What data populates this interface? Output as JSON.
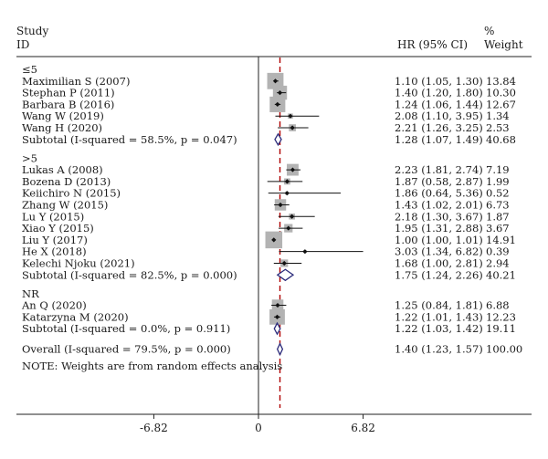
{
  "chart_data": {
    "type": "forest",
    "header": {
      "study_line1": "Study",
      "study_line2": "ID",
      "hr": "HR (95% CI)",
      "weight_line1": "%",
      "weight_line2": "Weight"
    },
    "axis": {
      "ticks": [
        {
          "value": -6.82,
          "label": "-6.82"
        },
        {
          "value": 0,
          "label": "0"
        },
        {
          "value": 6.82,
          "label": "6.82"
        }
      ],
      "null_value": 0,
      "xlim": [
        -6.82,
        6.82
      ],
      "note": "NOTE: Weights are from random effects analysis"
    },
    "groups": [
      {
        "label": "≤5",
        "studies": [
          {
            "name": "Maximilian S (2007)",
            "hr": 1.1,
            "lo": 1.05,
            "hi": 1.3,
            "ci": "1.10 (1.05, 1.30)",
            "weight": "13.84"
          },
          {
            "name": "Stephan P (2011)",
            "hr": 1.4,
            "lo": 1.2,
            "hi": 1.8,
            "ci": "1.40 (1.20, 1.80)",
            "weight": "10.30"
          },
          {
            "name": "Barbara B (2016)",
            "hr": 1.24,
            "lo": 1.06,
            "hi": 1.44,
            "ci": "1.24 (1.06, 1.44)",
            "weight": "12.67"
          },
          {
            "name": "Wang W (2019)",
            "hr": 2.08,
            "lo": 1.1,
            "hi": 3.95,
            "ci": "2.08 (1.10, 3.95)",
            "weight": "1.34"
          },
          {
            "name": "Wang H (2020)",
            "hr": 2.21,
            "lo": 1.26,
            "hi": 3.25,
            "ci": "2.21 (1.26, 3.25)",
            "weight": "2.53"
          }
        ],
        "subtotal": {
          "name": "Subtotal (I-squared = 58.5%, p = 0.047)",
          "hr": 1.28,
          "lo": 1.07,
          "hi": 1.49,
          "ci": "1.28 (1.07, 1.49)",
          "weight": "40.68"
        }
      },
      {
        "label": ">5",
        "studies": [
          {
            "name": "Lukas A (2008)",
            "hr": 2.23,
            "lo": 1.81,
            "hi": 2.74,
            "ci": "2.23 (1.81, 2.74)",
            "weight": "7.19"
          },
          {
            "name": "Bozena D (2013)",
            "hr": 1.87,
            "lo": 0.58,
            "hi": 2.87,
            "ci": "1.87 (0.58, 2.87)",
            "weight": "1.99"
          },
          {
            "name": "Keiichiro N (2015)",
            "hr": 1.86,
            "lo": 0.64,
            "hi": 5.36,
            "ci": "1.86 (0.64, 5.36)",
            "weight": "0.52"
          },
          {
            "name": "Zhang W (2015)",
            "hr": 1.43,
            "lo": 1.02,
            "hi": 2.01,
            "ci": "1.43 (1.02, 2.01)",
            "weight": "6.73"
          },
          {
            "name": "Lu Y (2015)",
            "hr": 2.18,
            "lo": 1.3,
            "hi": 3.67,
            "ci": "2.18 (1.30, 3.67)",
            "weight": "1.87"
          },
          {
            "name": "Xiao Y (2015)",
            "hr": 1.95,
            "lo": 1.31,
            "hi": 2.88,
            "ci": "1.95 (1.31, 2.88)",
            "weight": "3.67"
          },
          {
            "name": "Liu Y (2017)",
            "hr": 1.0,
            "lo": 1.0,
            "hi": 1.01,
            "ci": "1.00 (1.00, 1.01)",
            "weight": "14.91"
          },
          {
            "name": "He X (2018)",
            "hr": 3.03,
            "lo": 1.34,
            "hi": 6.82,
            "ci": "3.03 (1.34, 6.82)",
            "weight": "0.39"
          },
          {
            "name": "Kelechi Njoku (2021)",
            "hr": 1.68,
            "lo": 1.0,
            "hi": 2.81,
            "ci": "1.68 (1.00, 2.81)",
            "weight": "2.94"
          }
        ],
        "subtotal": {
          "name": "Subtotal (I-squared = 82.5%, p = 0.000)",
          "hr": 1.75,
          "lo": 1.24,
          "hi": 2.26,
          "ci": "1.75 (1.24, 2.26)",
          "weight": "40.21"
        }
      },
      {
        "label": "NR",
        "studies": [
          {
            "name": "An Q (2020)",
            "hr": 1.25,
            "lo": 0.84,
            "hi": 1.81,
            "ci": "1.25 (0.84, 1.81)",
            "weight": "6.88"
          },
          {
            "name": "Katarzyna M (2020)",
            "hr": 1.22,
            "lo": 1.01,
            "hi": 1.43,
            "ci": "1.22 (1.01, 1.43)",
            "weight": "12.23"
          }
        ],
        "subtotal": {
          "name": "Subtotal (I-squared = 0.0%, p = 0.911)",
          "hr": 1.22,
          "lo": 1.03,
          "hi": 1.42,
          "ci": "1.22 (1.03, 1.42)",
          "weight": "19.11"
        }
      }
    ],
    "overall": {
      "name": "Overall (I-squared = 79.5%, p = 0.000)",
      "hr": 1.4,
      "lo": 1.23,
      "hi": 1.57,
      "ci": "1.40 (1.23, 1.57)",
      "weight": "100.00"
    },
    "colors": {
      "box": "#b3b3b3",
      "diamond": "#2a2a7a",
      "dashed": "#b00000",
      "text": "#1a1a1a"
    }
  }
}
